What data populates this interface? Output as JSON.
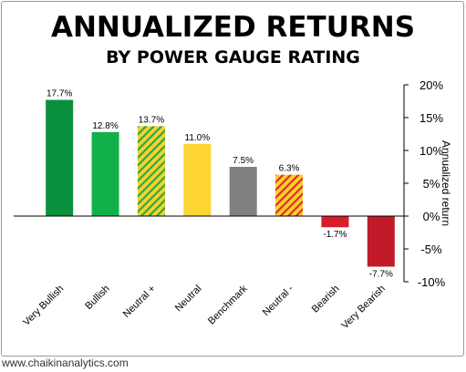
{
  "header": {
    "title": "ANNUALIZED RETURNS",
    "subtitle": "BY POWER GAUGE RATING"
  },
  "footer": {
    "url": "www.chaikinanalytics.com"
  },
  "chart_data": {
    "type": "bar",
    "title": "ANNUALIZED RETURNS",
    "subtitle": "BY POWER GAUGE RATING",
    "ylabel": "Annualized return",
    "xlabel": "",
    "ylim": [
      -10,
      20
    ],
    "y_ticks": [
      20,
      15,
      10,
      5,
      0,
      -5,
      -10
    ],
    "y_tick_labels": [
      "20%",
      "15%",
      "10%",
      "5%",
      "0%",
      "-5%",
      "-10%"
    ],
    "y_axis_side": "right",
    "grid": false,
    "categories": [
      "Very Bullish",
      "Bullish",
      "Neutral +",
      "Neutral",
      "Benchmark",
      "Neutral -",
      "Bearish",
      "Very Bearish"
    ],
    "values": [
      17.7,
      12.8,
      13.7,
      11.0,
      7.5,
      6.3,
      -1.7,
      -7.7
    ],
    "value_labels": [
      "17.7%",
      "12.8%",
      "13.7%",
      "11.0%",
      "7.5%",
      "6.3%",
      "-1.7%",
      "-7.7%"
    ],
    "bar_colors": [
      "#0a8f3c",
      "#12b04a",
      "#f9d12a",
      "#fcd535",
      "#808080",
      "#f9d12a",
      "#d81e2c",
      "#c11b2a"
    ],
    "hatch_colors": [
      null,
      null,
      "#2aa84a",
      null,
      null,
      "#e0302a",
      null,
      null
    ]
  }
}
